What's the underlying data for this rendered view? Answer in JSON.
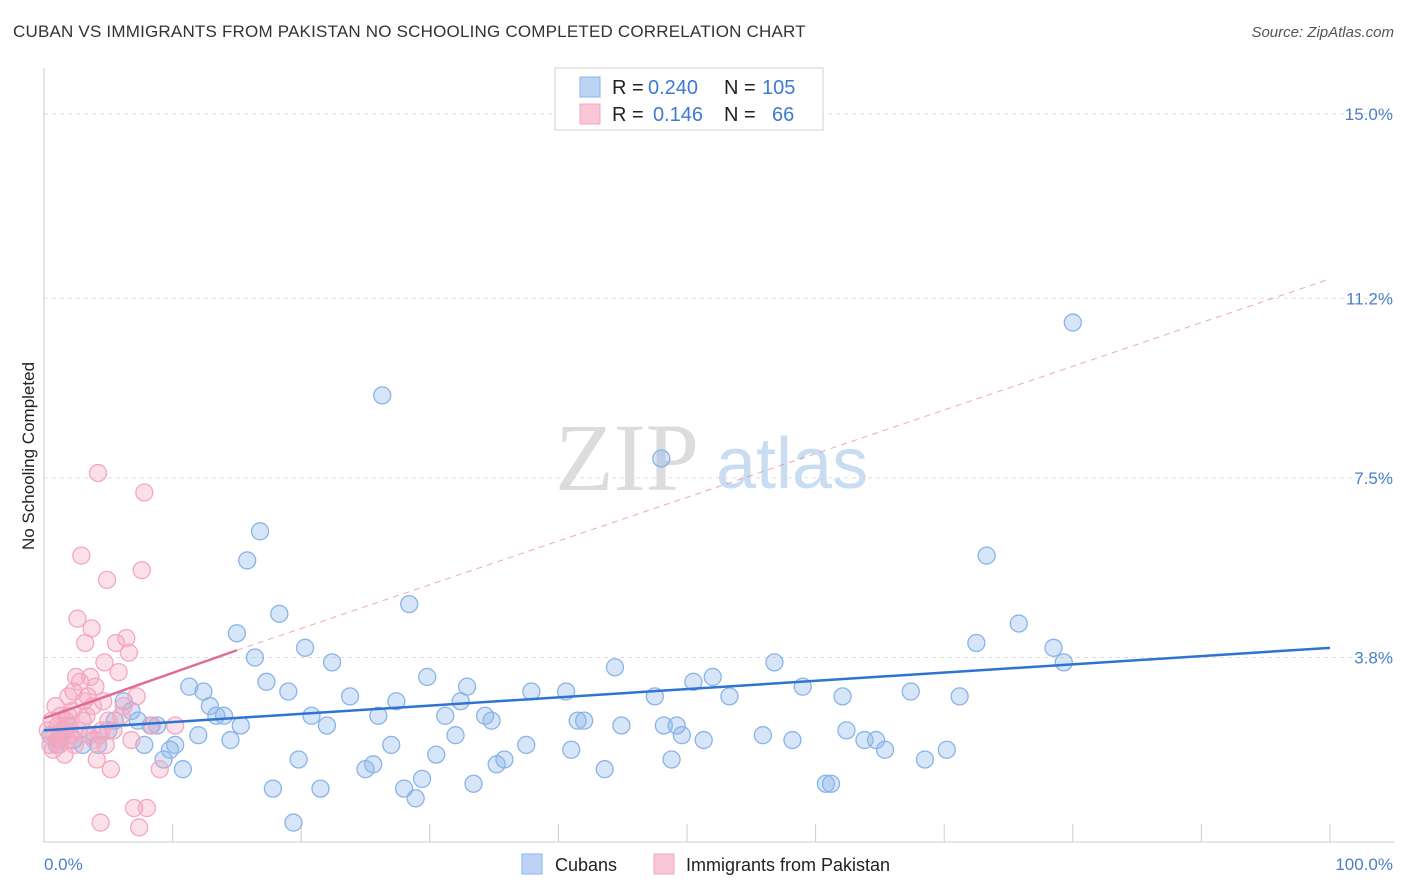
{
  "title": "CUBAN VS IMMIGRANTS FROM PAKISTAN NO SCHOOLING COMPLETED CORRELATION CHART",
  "source": "Source: ZipAtlas.com",
  "watermark": {
    "zip": "ZIP",
    "atlas": "atlas"
  },
  "chart_data": {
    "type": "scatter",
    "title": "CUBAN VS IMMIGRANTS FROM PAKISTAN NO SCHOOLING COMPLETED CORRELATION CHART",
    "xlabel": "",
    "ylabel": "No Schooling Completed",
    "xlim": [
      0,
      100
    ],
    "ylim": [
      0,
      15.8
    ],
    "x_tick_labels": [
      "0.0%",
      "100.0%"
    ],
    "y_ticks": [
      {
        "value": 3.8,
        "label": "3.8%"
      },
      {
        "value": 7.5,
        "label": "7.5%"
      },
      {
        "value": 11.2,
        "label": "11.2%"
      },
      {
        "value": 15.0,
        "label": "15.0%"
      }
    ],
    "legend": [
      {
        "r_label": "R =",
        "r_value": "0.240",
        "n_label": "N =",
        "n_value": "105"
      },
      {
        "r_label": "R =",
        "r_value": "0.146",
        "n_label": "N =",
        "n_value": "66"
      }
    ],
    "series": [
      {
        "name": "Cubans",
        "color": "#8ab4e8",
        "trend_color": "#2f74d0",
        "trend": {
          "x0": 0,
          "y0": 2.3,
          "x1": 100,
          "y1": 4.0
        },
        "points": [
          [
            0.5,
            2.2
          ],
          [
            1.0,
            2.0
          ],
          [
            1.2,
            2.1
          ],
          [
            1.8,
            2.4
          ],
          [
            2.3,
            2.1
          ],
          [
            3.0,
            2.0
          ],
          [
            3.5,
            2.2
          ],
          [
            4.2,
            2.0
          ],
          [
            5.0,
            2.3
          ],
          [
            5.5,
            2.5
          ],
          [
            6.2,
            2.9
          ],
          [
            6.8,
            2.7
          ],
          [
            7.3,
            2.5
          ],
          [
            7.8,
            2.0
          ],
          [
            8.3,
            2.4
          ],
          [
            8.8,
            2.4
          ],
          [
            9.3,
            1.7
          ],
          [
            9.8,
            1.9
          ],
          [
            10.2,
            2.0
          ],
          [
            10.8,
            1.5
          ],
          [
            11.3,
            3.2
          ],
          [
            12.0,
            2.2
          ],
          [
            12.4,
            3.1
          ],
          [
            12.9,
            2.8
          ],
          [
            13.4,
            2.6
          ],
          [
            14.0,
            2.6
          ],
          [
            14.5,
            2.1
          ],
          [
            15.0,
            4.3
          ],
          [
            15.3,
            2.4
          ],
          [
            15.8,
            5.8
          ],
          [
            16.4,
            3.8
          ],
          [
            16.8,
            6.4
          ],
          [
            17.3,
            3.3
          ],
          [
            17.8,
            1.1
          ],
          [
            18.3,
            4.7
          ],
          [
            19.0,
            3.1
          ],
          [
            19.4,
            0.4
          ],
          [
            19.8,
            1.7
          ],
          [
            20.3,
            4.0
          ],
          [
            20.8,
            2.6
          ],
          [
            21.5,
            1.1
          ],
          [
            22.0,
            2.4
          ],
          [
            22.4,
            3.7
          ],
          [
            23.8,
            3.0
          ],
          [
            25.0,
            1.5
          ],
          [
            25.6,
            1.6
          ],
          [
            26.0,
            2.6
          ],
          [
            26.3,
            9.2
          ],
          [
            27.0,
            2.0
          ],
          [
            27.4,
            2.9
          ],
          [
            28.0,
            1.1
          ],
          [
            28.4,
            4.9
          ],
          [
            28.9,
            0.9
          ],
          [
            29.4,
            1.3
          ],
          [
            29.8,
            3.4
          ],
          [
            30.5,
            1.8
          ],
          [
            31.2,
            2.6
          ],
          [
            32.0,
            2.2
          ],
          [
            32.4,
            2.9
          ],
          [
            32.9,
            3.2
          ],
          [
            33.4,
            1.2
          ],
          [
            34.3,
            2.6
          ],
          [
            34.8,
            2.5
          ],
          [
            35.2,
            1.6
          ],
          [
            35.8,
            1.7
          ],
          [
            37.5,
            2.0
          ],
          [
            37.9,
            3.1
          ],
          [
            40.6,
            3.1
          ],
          [
            41.0,
            1.9
          ],
          [
            41.5,
            2.5
          ],
          [
            42.0,
            2.5
          ],
          [
            43.6,
            1.5
          ],
          [
            44.4,
            3.6
          ],
          [
            44.9,
            2.4
          ],
          [
            47.5,
            3.0
          ],
          [
            48.2,
            2.4
          ],
          [
            48.8,
            1.7
          ],
          [
            49.2,
            2.4
          ],
          [
            49.6,
            2.2
          ],
          [
            50.5,
            3.3
          ],
          [
            51.3,
            2.1
          ],
          [
            52.0,
            3.4
          ],
          [
            53.3,
            3.0
          ],
          [
            55.9,
            2.2
          ],
          [
            56.8,
            3.7
          ],
          [
            58.2,
            2.1
          ],
          [
            59.0,
            3.2
          ],
          [
            60.8,
            1.2
          ],
          [
            61.2,
            1.2
          ],
          [
            62.1,
            3.0
          ],
          [
            62.4,
            2.3
          ],
          [
            63.8,
            2.1
          ],
          [
            64.7,
            2.1
          ],
          [
            65.4,
            1.9
          ],
          [
            67.4,
            3.1
          ],
          [
            68.5,
            1.7
          ],
          [
            70.2,
            1.9
          ],
          [
            71.2,
            3.0
          ],
          [
            72.5,
            4.1
          ],
          [
            73.3,
            5.9
          ],
          [
            75.8,
            4.5
          ],
          [
            78.5,
            4.0
          ],
          [
            79.3,
            3.7
          ],
          [
            80.0,
            10.7
          ],
          [
            48.0,
            7.9
          ]
        ]
      },
      {
        "name": "Immigrants from Pakistan",
        "color": "#f4a7bf",
        "trend_color": "#e26a96",
        "trend": {
          "x0": 0,
          "y0": 2.55,
          "x1": 15,
          "y1": 3.95
        },
        "trend_ext": {
          "x0": 15,
          "y0": 3.95,
          "x1": 100,
          "y1": 11.6
        },
        "points": [
          [
            0.3,
            2.3
          ],
          [
            0.5,
            2.0
          ],
          [
            0.6,
            2.5
          ],
          [
            0.7,
            1.9
          ],
          [
            0.8,
            2.2
          ],
          [
            0.9,
            2.8
          ],
          [
            1.0,
            2.1
          ],
          [
            1.1,
            2.4
          ],
          [
            1.2,
            2.0
          ],
          [
            1.3,
            2.6
          ],
          [
            1.4,
            2.2
          ],
          [
            1.5,
            2.3
          ],
          [
            1.6,
            1.8
          ],
          [
            1.7,
            2.5
          ],
          [
            1.8,
            2.1
          ],
          [
            1.9,
            3.0
          ],
          [
            2.0,
            2.4
          ],
          [
            2.1,
            2.2
          ],
          [
            2.2,
            2.7
          ],
          [
            2.3,
            3.1
          ],
          [
            2.4,
            2.0
          ],
          [
            2.5,
            3.4
          ],
          [
            2.6,
            4.6
          ],
          [
            2.7,
            2.3
          ],
          [
            2.8,
            3.3
          ],
          [
            2.9,
            5.9
          ],
          [
            3.0,
            2.5
          ],
          [
            3.1,
            2.9
          ],
          [
            3.2,
            4.1
          ],
          [
            3.3,
            2.6
          ],
          [
            3.4,
            3.0
          ],
          [
            3.5,
            2.2
          ],
          [
            3.6,
            3.4
          ],
          [
            3.7,
            4.4
          ],
          [
            3.8,
            2.8
          ],
          [
            3.9,
            2.1
          ],
          [
            4.0,
            3.2
          ],
          [
            4.1,
            1.7
          ],
          [
            4.2,
            7.6
          ],
          [
            4.3,
            2.2
          ],
          [
            4.4,
            0.4
          ],
          [
            4.5,
            2.3
          ],
          [
            4.6,
            2.9
          ],
          [
            4.7,
            3.7
          ],
          [
            4.8,
            2.0
          ],
          [
            4.9,
            5.4
          ],
          [
            5.0,
            2.5
          ],
          [
            5.2,
            1.5
          ],
          [
            5.4,
            2.3
          ],
          [
            5.6,
            4.1
          ],
          [
            5.8,
            3.5
          ],
          [
            6.0,
            2.6
          ],
          [
            6.2,
            2.8
          ],
          [
            6.4,
            4.2
          ],
          [
            6.6,
            3.9
          ],
          [
            6.8,
            2.1
          ],
          [
            7.0,
            0.7
          ],
          [
            7.2,
            3.0
          ],
          [
            7.4,
            0.3
          ],
          [
            7.6,
            5.6
          ],
          [
            7.8,
            7.2
          ],
          [
            8.0,
            0.7
          ],
          [
            8.4,
            2.4
          ],
          [
            9.0,
            1.5
          ],
          [
            10.2,
            2.4
          ],
          [
            1.9,
            2.6
          ]
        ]
      }
    ]
  }
}
